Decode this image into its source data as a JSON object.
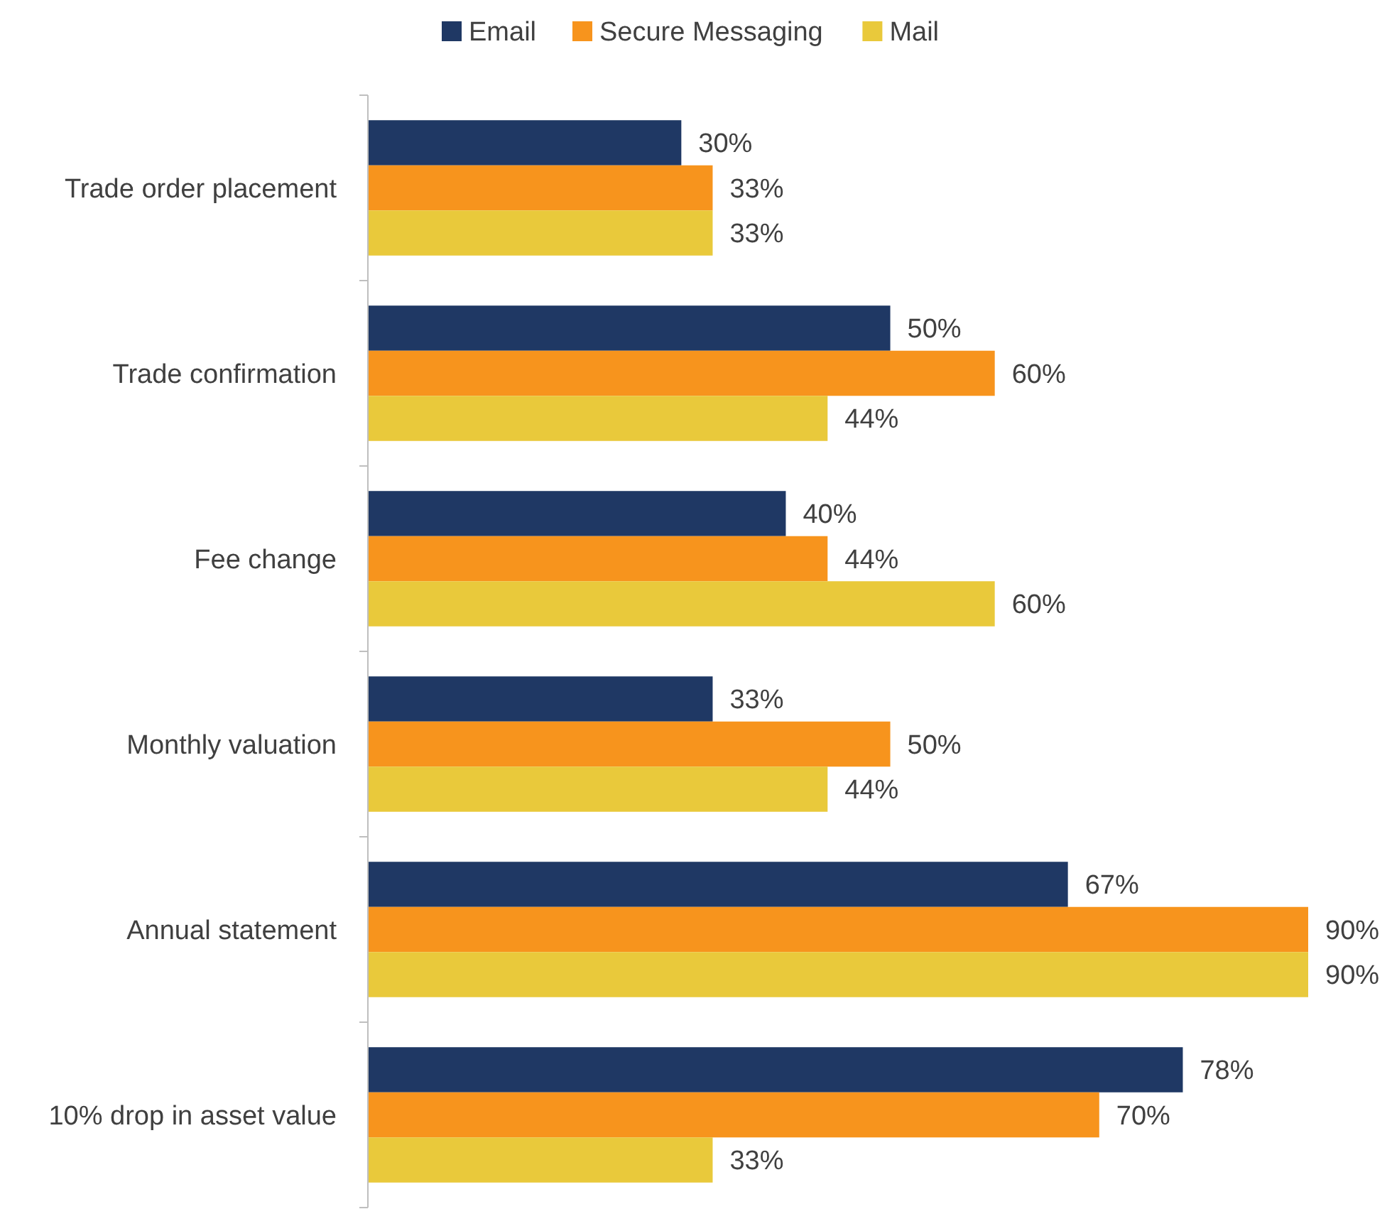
{
  "chart_data": {
    "type": "bar",
    "orientation": "horizontal",
    "legend": "top",
    "categories": [
      "Trade order placement",
      "Trade confirmation",
      "Fee change",
      "Monthly valuation",
      "Annual statement",
      "10% drop in asset value"
    ],
    "series": [
      {
        "name": "Email",
        "color": "#1f3864",
        "values": [
          30,
          50,
          40,
          33,
          67,
          78
        ],
        "value_labels": [
          "30%",
          "50%",
          "40%",
          "33%",
          "67%",
          "78%"
        ]
      },
      {
        "name": "Secure Messaging",
        "color": "#f7941d",
        "values": [
          33,
          60,
          44,
          50,
          90,
          70
        ],
        "value_labels": [
          "33%",
          "60%",
          "44%",
          "50%",
          "90%",
          "70%"
        ]
      },
      {
        "name": "Mail",
        "color": "#e9c93b",
        "values": [
          33,
          44,
          60,
          44,
          90,
          33
        ],
        "value_labels": [
          "33%",
          "44%",
          "60%",
          "44%",
          "90%",
          "33%"
        ]
      }
    ]
  }
}
